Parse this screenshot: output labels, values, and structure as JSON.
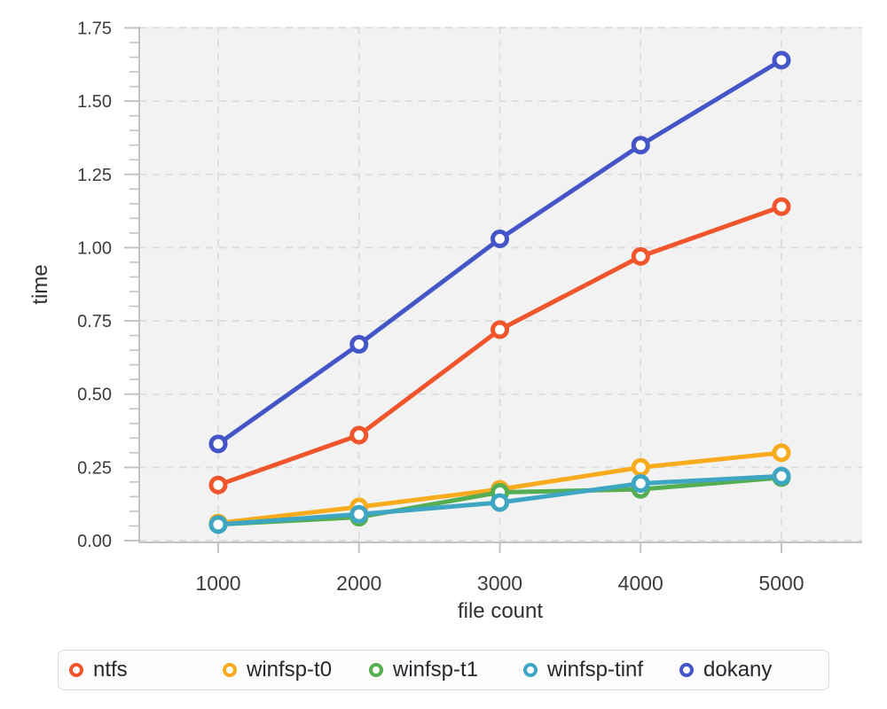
{
  "chart_data": {
    "type": "line",
    "title": "",
    "xlabel": "file count",
    "ylabel": "time",
    "x": [
      1000,
      2000,
      3000,
      4000,
      5000
    ],
    "x_tick_labels": [
      "1000",
      "2000",
      "3000",
      "4000",
      "5000"
    ],
    "y_tick_labels": [
      "0.00",
      "0.25",
      "0.50",
      "0.75",
      "1.00",
      "1.25",
      "1.50",
      "1.75"
    ],
    "ylim": [
      0,
      1.75
    ],
    "y_major_step": 0.25,
    "y_minor_step": 0.05,
    "grid": "dashed",
    "plot_background": "#f2f2f3",
    "grid_color": "#dbdbdb",
    "axis_color": "#c3c3c5",
    "tick_label_color": "#3d3d3f",
    "legend_position": "bottom",
    "marker": "open-circle",
    "series": [
      {
        "name": "ntfs",
        "color": "#F0552B",
        "values": [
          0.19,
          0.36,
          0.72,
          0.97,
          1.14
        ]
      },
      {
        "name": "winfsp-t0",
        "color": "#F8AB1C",
        "values": [
          0.06,
          0.115,
          0.175,
          0.25,
          0.3
        ]
      },
      {
        "name": "winfsp-t1",
        "color": "#55AE51",
        "values": [
          0.055,
          0.08,
          0.165,
          0.175,
          0.215
        ]
      },
      {
        "name": "winfsp-tinf",
        "color": "#3EA6C2",
        "values": [
          0.055,
          0.09,
          0.13,
          0.195,
          0.22
        ]
      },
      {
        "name": "dokany",
        "color": "#4456C7",
        "values": [
          0.33,
          0.67,
          1.03,
          1.35,
          1.64
        ]
      }
    ]
  }
}
